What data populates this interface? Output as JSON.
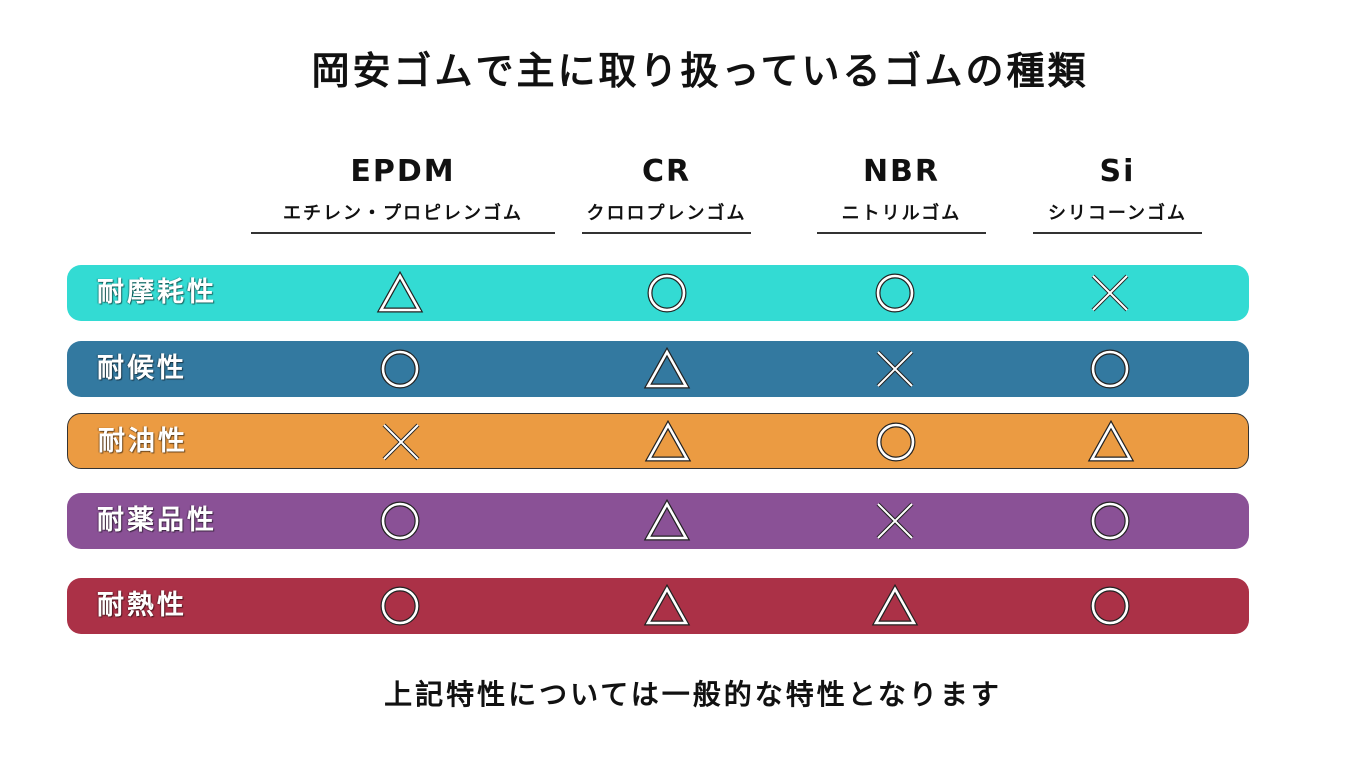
{
  "title": "岡安ゴムで主に取り扱っているゴムの種類",
  "columns": [
    {
      "code": "EPDM",
      "name": "エチレン・プロピレンゴム"
    },
    {
      "code": "CR",
      "name": "クロロプレンゴム"
    },
    {
      "code": "NBR",
      "name": "ニトリルゴム"
    },
    {
      "code": "Si",
      "name": "シリコーンゴム"
    }
  ],
  "rows": [
    {
      "label": "耐摩耗性",
      "color": "#33dbd3",
      "marks": [
        "triangle-icon",
        "circle-icon",
        "circle-icon",
        "cross-icon"
      ]
    },
    {
      "label": "耐候性",
      "color": "#3379a0",
      "marks": [
        "circle-icon",
        "triangle-icon",
        "cross-icon",
        "circle-icon"
      ]
    },
    {
      "label": "耐油性",
      "color": "#eb9b42",
      "marks": [
        "cross-icon",
        "triangle-icon",
        "circle-icon",
        "triangle-icon"
      ]
    },
    {
      "label": "耐薬品性",
      "color": "#8a5196",
      "marks": [
        "circle-icon",
        "triangle-icon",
        "cross-icon",
        "circle-icon"
      ]
    },
    {
      "label": "耐熱性",
      "color": "#ab3147",
      "marks": [
        "circle-icon",
        "triangle-icon",
        "triangle-icon",
        "circle-icon"
      ]
    }
  ],
  "footnote": "上記特性については一般的な特性となります"
}
